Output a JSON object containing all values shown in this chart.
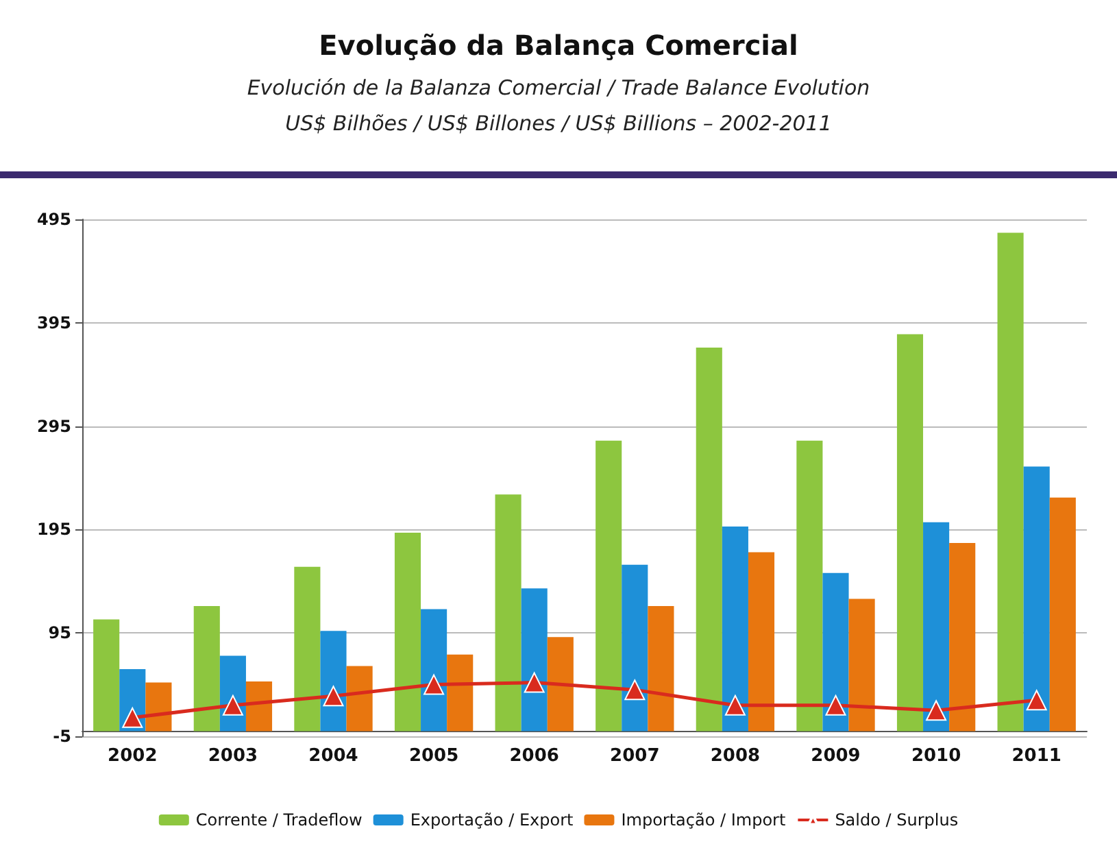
{
  "chart_data": {
    "type": "bar",
    "title": "Evolução da Balança Comercial",
    "subtitle": "Evolución de la Balanza Comercial / Trade Balance Evolution\nUS$ Bilhões / US$ Billones / US$ Billions – 2002-2011",
    "categories": [
      "2002",
      "2003",
      "2004",
      "2005",
      "2006",
      "2007",
      "2008",
      "2009",
      "2010",
      "2011"
    ],
    "series": [
      {
        "name": "Corrente / Tradeflow",
        "color": "#8dc63f",
        "values": [
          108,
          121,
          159,
          192,
          229,
          281,
          371,
          281,
          384,
          482
        ]
      },
      {
        "name": "Exportação / Export",
        "color": "#1e90d8",
        "values": [
          60,
          73,
          97,
          118,
          138,
          161,
          198,
          153,
          202,
          256
        ]
      },
      {
        "name": "Importação / Import",
        "color": "#e8760f",
        "values": [
          47,
          48,
          63,
          74,
          91,
          121,
          173,
          128,
          182,
          226
        ]
      },
      {
        "name": "Saldo / Surplus",
        "type": "line",
        "color": "#d92b1e",
        "values": [
          13,
          25,
          34,
          45,
          47,
          40,
          25,
          25,
          20,
          30
        ]
      }
    ],
    "ylim": [
      -5,
      495
    ],
    "yticks": [
      -5,
      95,
      195,
      295,
      395,
      495
    ],
    "grid": "y",
    "legend": "bottom",
    "marker": "triangle"
  }
}
